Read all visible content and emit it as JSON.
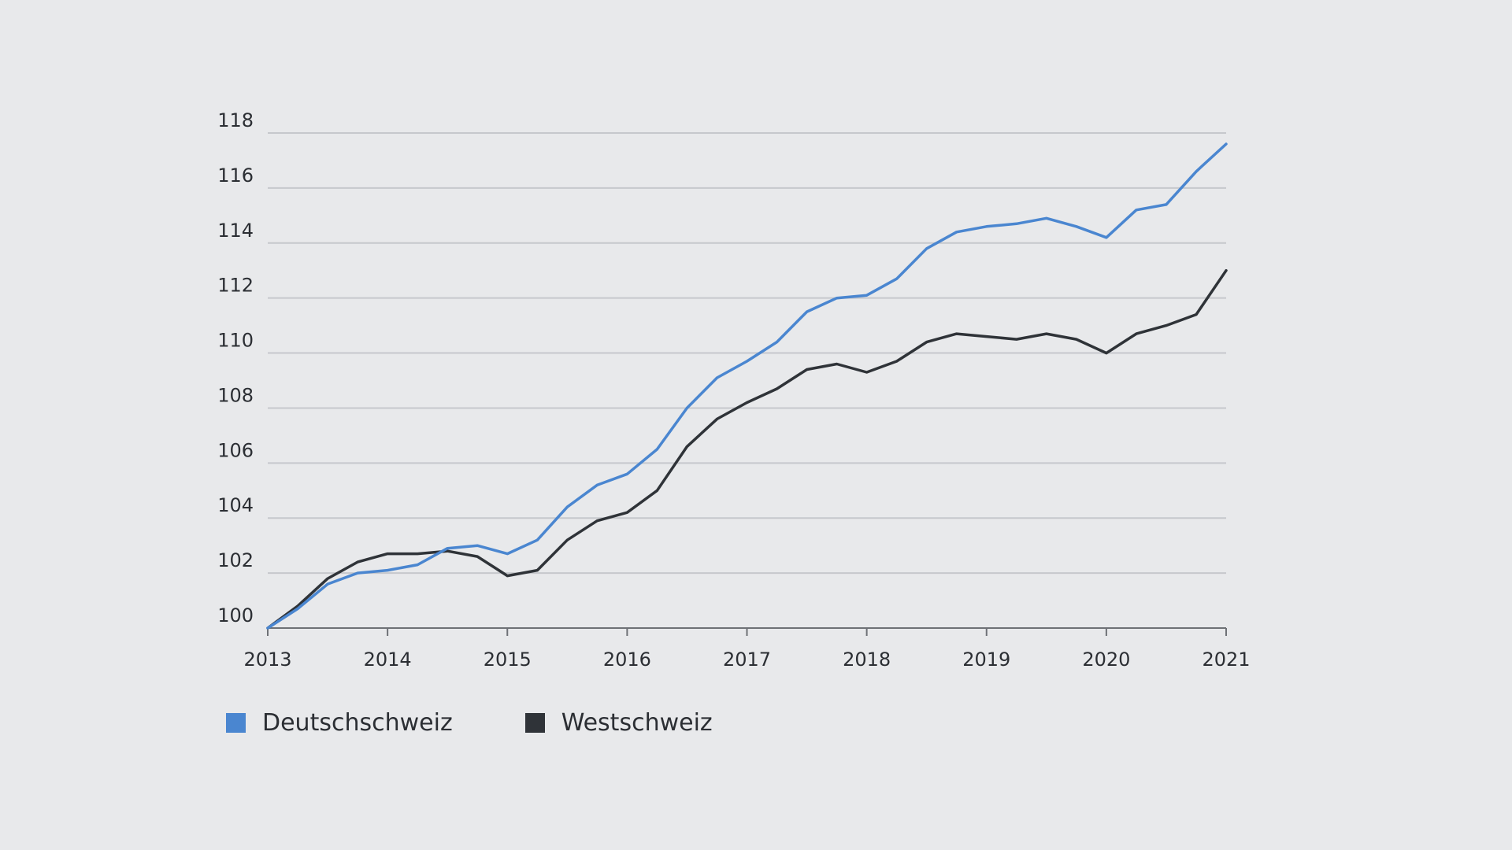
{
  "chart_data": {
    "type": "line",
    "title": "",
    "xlabel": "",
    "ylabel": "",
    "xlim": [
      2013,
      2021
    ],
    "ylim": [
      100,
      118
    ],
    "grid": true,
    "legend_position": "bottom-left",
    "x_ticks": [
      "2013",
      "2014",
      "2015",
      "2016",
      "2017",
      "2018",
      "2019",
      "2020",
      "2021"
    ],
    "y_ticks": [
      "100",
      "102",
      "104",
      "106",
      "108",
      "110",
      "112",
      "114",
      "116",
      "118"
    ],
    "x": [
      2013.0,
      2013.25,
      2013.5,
      2013.75,
      2014.0,
      2014.25,
      2014.5,
      2014.75,
      2015.0,
      2015.25,
      2015.5,
      2015.75,
      2016.0,
      2016.25,
      2016.5,
      2016.75,
      2017.0,
      2017.25,
      2017.5,
      2017.75,
      2018.0,
      2018.25,
      2018.5,
      2018.75,
      2019.0,
      2019.25,
      2019.5,
      2019.75,
      2020.0,
      2020.25,
      2020.5,
      2020.75,
      2021.0
    ],
    "series": [
      {
        "name": "Deutschschweiz",
        "color": "#4a86d0",
        "values": [
          100.0,
          100.7,
          101.6,
          102.0,
          102.1,
          102.3,
          102.9,
          103.0,
          102.7,
          103.2,
          104.4,
          105.2,
          105.6,
          106.5,
          108.0,
          109.1,
          109.7,
          110.4,
          111.5,
          112.0,
          112.1,
          112.7,
          113.8,
          114.4,
          114.6,
          114.7,
          114.9,
          114.6,
          114.2,
          115.2,
          115.4,
          116.6,
          117.6
        ]
      },
      {
        "name": "Westschweiz",
        "color": "#2f3338",
        "values": [
          100.0,
          100.8,
          101.8,
          102.4,
          102.7,
          102.7,
          102.8,
          102.6,
          101.9,
          102.1,
          103.2,
          103.9,
          104.2,
          105.0,
          106.6,
          107.6,
          108.2,
          108.7,
          109.4,
          109.6,
          109.3,
          109.7,
          110.4,
          110.7,
          110.6,
          110.5,
          110.7,
          110.5,
          110.0,
          110.7,
          111.0,
          111.4,
          113.0
        ]
      }
    ]
  },
  "colors": {
    "background": "#e8e9eb",
    "grid": "#c6c8cc",
    "text": "#2b2e33"
  }
}
